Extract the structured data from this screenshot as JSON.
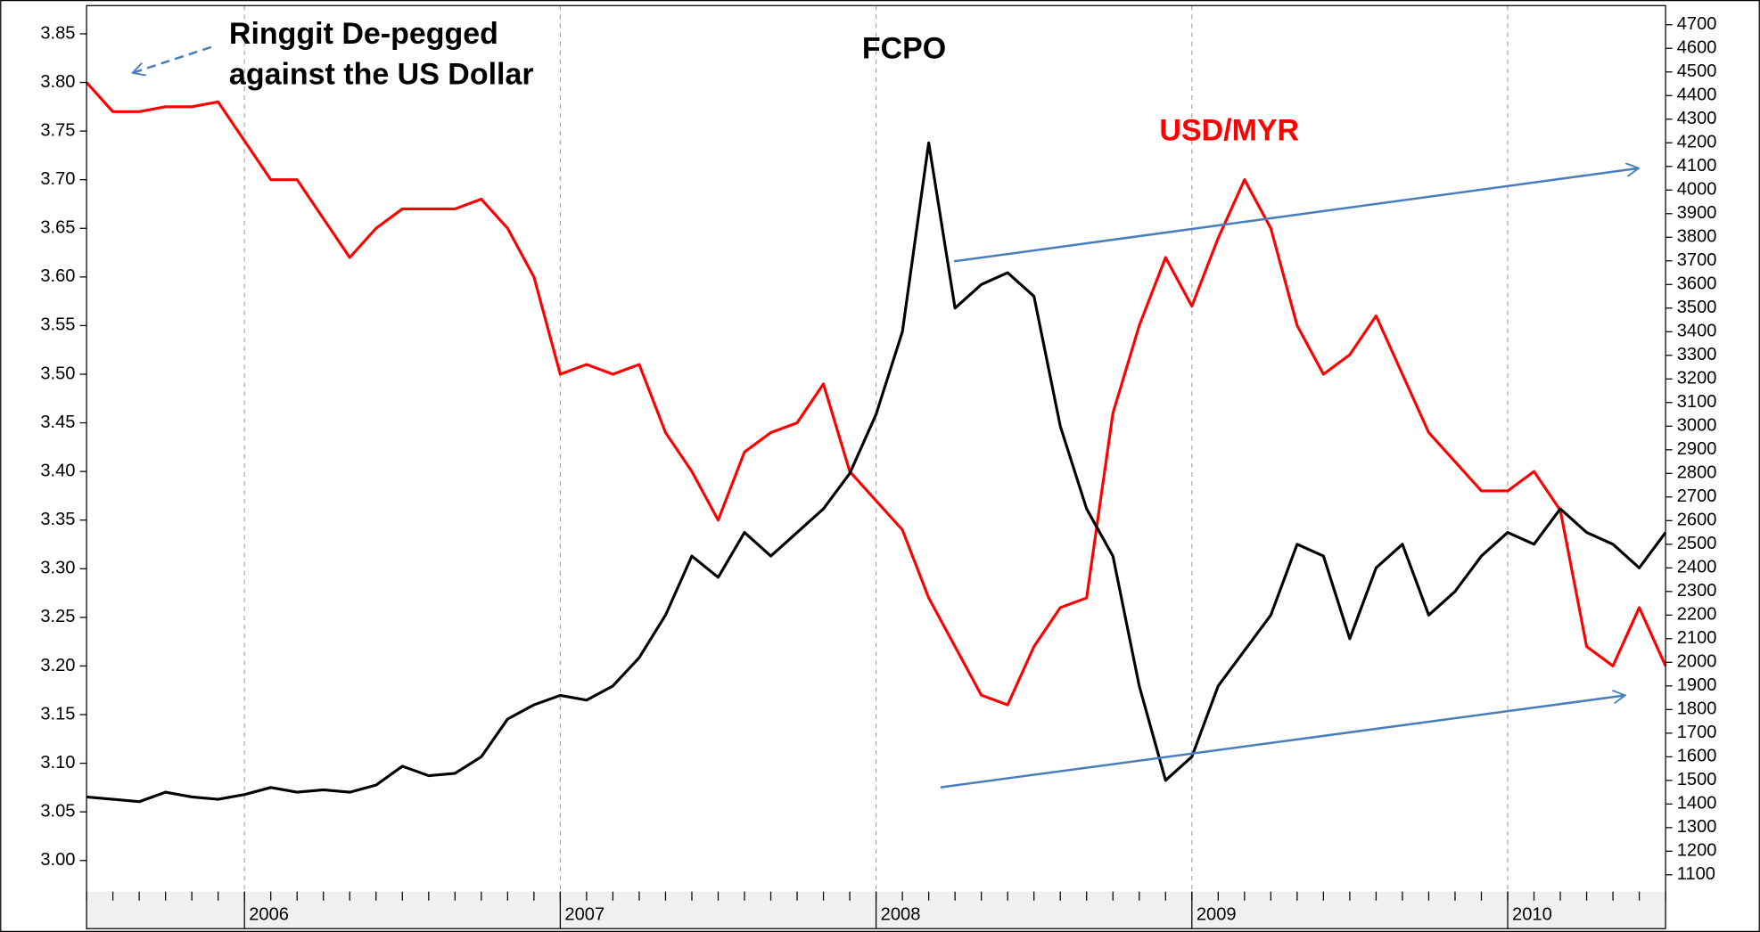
{
  "chart_data": {
    "type": "line",
    "annotations": [
      "Ringgit De-pegged",
      "against the US Dollar"
    ],
    "categories": [
      null,
      null,
      null,
      null,
      null,
      null,
      "2006",
      null,
      null,
      null,
      null,
      null,
      null,
      null,
      null,
      null,
      null,
      null,
      "2007",
      null,
      null,
      null,
      null,
      null,
      null,
      null,
      null,
      null,
      null,
      null,
      "2008",
      null,
      null,
      null,
      null,
      null,
      null,
      null,
      null,
      null,
      null,
      null,
      "2009",
      null,
      null,
      null,
      null,
      null,
      null,
      null,
      null,
      null,
      null,
      null,
      "2010",
      null,
      null,
      null,
      null,
      null,
      null
    ],
    "series": [
      {
        "name": "USD/MYR",
        "color": "#ff0000",
        "axis": "y",
        "values": [
          3.8,
          3.77,
          3.77,
          3.775,
          3.775,
          3.78,
          3.74,
          3.7,
          3.7,
          3.66,
          3.62,
          3.65,
          3.67,
          3.67,
          3.67,
          3.68,
          3.65,
          3.6,
          3.5,
          3.51,
          3.5,
          3.51,
          3.44,
          3.4,
          3.35,
          3.42,
          3.44,
          3.45,
          3.49,
          3.4,
          3.37,
          3.34,
          3.27,
          3.22,
          3.17,
          3.16,
          3.22,
          3.26,
          3.27,
          3.46,
          3.55,
          3.62,
          3.57,
          3.64,
          3.7,
          3.65,
          3.55,
          3.5,
          3.52,
          3.56,
          3.5,
          3.44,
          3.41,
          3.38,
          3.38,
          3.4,
          3.36,
          3.22,
          3.2,
          3.26,
          3.2
        ]
      },
      {
        "name": "FCPO",
        "color": "#000000",
        "axis": "y2",
        "values": [
          1430,
          1420,
          1410,
          1450,
          1430,
          1420,
          1440,
          1470,
          1450,
          1460,
          1450,
          1480,
          1560,
          1520,
          1530,
          1600,
          1760,
          1820,
          1860,
          1840,
          1900,
          2020,
          2200,
          2450,
          2360,
          2550,
          2450,
          2550,
          2650,
          2800,
          3050,
          3400,
          4200,
          3500,
          3600,
          3650,
          3550,
          3000,
          2650,
          2450,
          1900,
          1500,
          1600,
          1900,
          2050,
          2200,
          2500,
          2450,
          2100,
          2400,
          2500,
          2200,
          2300,
          2450,
          2550,
          2500,
          2650,
          2550,
          2500,
          2400,
          2550
        ]
      }
    ],
    "ylim": [
      2.968,
      3.879
    ],
    "yticks": [
      {
        "value": 3.0,
        "label": "3.00"
      },
      3.05,
      {
        "value": 3.1,
        "label": "3.10"
      },
      3.15,
      {
        "value": 3.2,
        "label": "3.20"
      },
      3.25,
      {
        "value": 3.3,
        "label": "3.30"
      },
      3.35,
      {
        "value": 3.4,
        "label": "3.40"
      },
      3.45,
      {
        "value": 3.5,
        "label": "3.50"
      },
      3.55,
      {
        "value": 3.6,
        "label": "3.60"
      },
      3.65,
      {
        "value": 3.7,
        "label": "3.70"
      },
      3.75,
      {
        "value": 3.8,
        "label": "3.80"
      },
      3.85
    ],
    "y2lim": [
      1029,
      4781
    ],
    "y2ticks": [
      1100,
      1200,
      1300,
      1400,
      1500,
      1600,
      1700,
      1800,
      1900,
      2000,
      2100,
      2200,
      2300,
      2400,
      2500,
      2600,
      2700,
      2800,
      2900,
      3000,
      3100,
      3200,
      3300,
      3400,
      3500,
      3600,
      3700,
      3800,
      3900,
      4000,
      4100,
      4200,
      4300,
      4400,
      4500,
      4600,
      4700
    ],
    "grid": true
  }
}
